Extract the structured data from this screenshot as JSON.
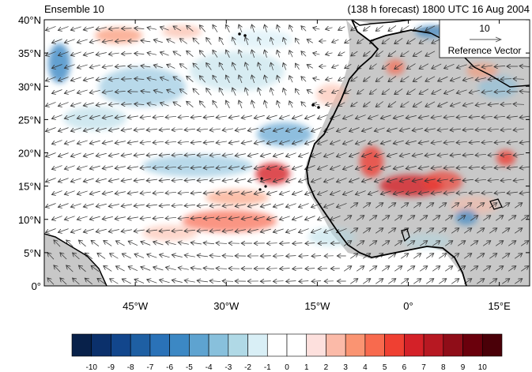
{
  "header": {
    "left_title": "Ensemble 10",
    "right_title": "(138 h forecast) 1800 UTC 16 Aug 2004"
  },
  "map": {
    "lon_range": [
      -60,
      20
    ],
    "lat_range": [
      0,
      40
    ],
    "lat_ticks": [
      {
        "value": 40,
        "label": "40°N"
      },
      {
        "value": 35,
        "label": "35°N"
      },
      {
        "value": 30,
        "label": "30°N"
      },
      {
        "value": 25,
        "label": "25°N"
      },
      {
        "value": 20,
        "label": "20°N"
      },
      {
        "value": 15,
        "label": "15°N"
      },
      {
        "value": 10,
        "label": "10°N"
      },
      {
        "value": 5,
        "label": "5°N"
      },
      {
        "value": 0,
        "label": "0°"
      }
    ],
    "lon_ticks": [
      {
        "value": -45,
        "label": "45°W"
      },
      {
        "value": -30,
        "label": "30°W"
      },
      {
        "value": -15,
        "label": "15°W"
      },
      {
        "value": 0,
        "label": "0°"
      },
      {
        "value": 15,
        "label": "15°E"
      }
    ],
    "land_color": "#c8c8c8",
    "ocean_color": "#ffffff",
    "coast_color": "#000000",
    "vector_color": "#333333"
  },
  "reference_vector": {
    "value": "10",
    "label": "Reference Vector"
  },
  "colorbar": {
    "labels": [
      "-10",
      "-9",
      "-8",
      "-7",
      "-6",
      "-5",
      "-4",
      "-3",
      "-2",
      "-1",
      "0",
      "1",
      "2",
      "3",
      "4",
      "5",
      "6",
      "7",
      "8",
      "9",
      "10"
    ],
    "colors": [
      "#08214a",
      "#0b306b",
      "#12468c",
      "#1e5fa3",
      "#2a72b8",
      "#3c88c4",
      "#5ea3d0",
      "#88c0dc",
      "#b0d9e6",
      "#d9eff6",
      "#ffffff",
      "#ffffff",
      "#fde0dd",
      "#fbbaa8",
      "#fa9472",
      "#f86a4e",
      "#ef4032",
      "#d42128",
      "#b71822",
      "#8f0d18",
      "#6a000c",
      "#4a0008"
    ]
  }
}
